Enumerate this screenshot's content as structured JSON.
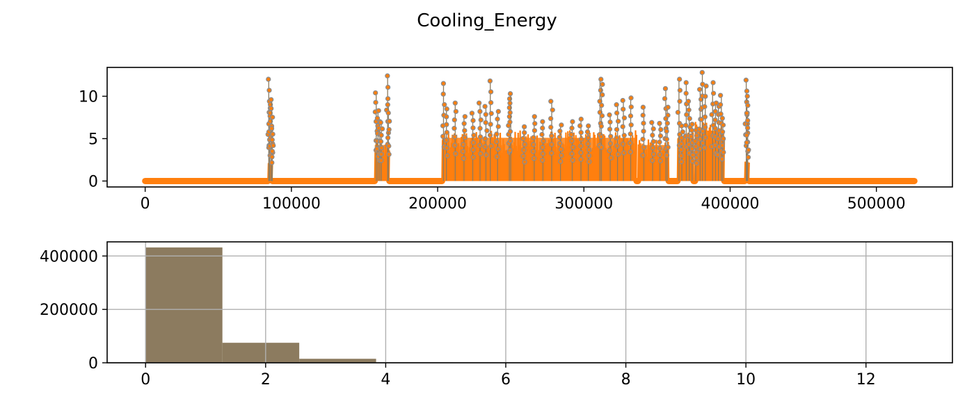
{
  "suptitle": "Cooling_Energy",
  "chart_data": [
    {
      "type": "line",
      "title": "",
      "xlabel": "",
      "ylabel": "",
      "xlim": [
        -26000,
        552000
      ],
      "ylim": [
        -0.7,
        13.4
      ],
      "x_ticks": [
        0,
        100000,
        200000,
        300000,
        400000,
        500000
      ],
      "x_tick_labels": [
        "0",
        "100000",
        "200000",
        "300000",
        "400000",
        "500000"
      ],
      "y_ticks": [
        0,
        5,
        10
      ],
      "y_tick_labels": [
        "0",
        "5",
        "10"
      ],
      "grid": false,
      "markers": "circle",
      "colors": {
        "line": "#8c7b5f",
        "marker_edge": "#8c8c8c",
        "marker_face": "#ff7f0e"
      },
      "x_range": [
        0,
        526000
      ],
      "baseline_value": 0,
      "active_periods": [
        {
          "start": 84000,
          "end": 87000,
          "typical_max": 2.5,
          "peaks": [
            [
              84500,
              12.0
            ],
            [
              85000,
              8.6
            ],
            [
              85800,
              9.0
            ],
            [
              86600,
              9.6
            ],
            [
              86900,
              6.2
            ]
          ]
        },
        {
          "start": 157000,
          "end": 167000,
          "typical_max": 5.0,
          "peaks": [
            [
              158000,
              10.4
            ],
            [
              159200,
              8.3
            ],
            [
              160400,
              7.0
            ],
            [
              161500,
              6.9
            ],
            [
              165800,
              12.4
            ],
            [
              166300,
              9.0
            ]
          ]
        },
        {
          "start": 203000,
          "end": 336000,
          "typical_max": 6.0,
          "peaks": [
            [
              204000,
              11.5
            ],
            [
              206000,
              8.5
            ],
            [
              212000,
              9.2
            ],
            [
              218000,
              7.6
            ],
            [
              224000,
              8.0
            ],
            [
              229000,
              9.2
            ],
            [
              233000,
              8.8
            ],
            [
              236000,
              11.8
            ],
            [
              241000,
              8.2
            ],
            [
              249000,
              9.7
            ],
            [
              250000,
              10.3
            ],
            [
              259000,
              6.4
            ],
            [
              266000,
              7.6
            ],
            [
              272000,
              7.0
            ],
            [
              278000,
              9.4
            ],
            [
              284000,
              6.6
            ],
            [
              292000,
              7.0
            ],
            [
              298000,
              7.3
            ],
            [
              303000,
              6.5
            ],
            [
              311000,
              12.0
            ],
            [
              312000,
              11.4
            ],
            [
              318000,
              7.8
            ],
            [
              323000,
              9.0
            ],
            [
              327000,
              9.5
            ],
            [
              332000,
              9.8
            ]
          ]
        },
        {
          "start": 337000,
          "end": 358000,
          "typical_max": 5.0,
          "peaks": [
            [
              341000,
              8.7
            ],
            [
              347000,
              6.9
            ],
            [
              352000,
              6.8
            ],
            [
              356000,
              10.9
            ],
            [
              357000,
              8.7
            ]
          ]
        },
        {
          "start": 364000,
          "end": 375000,
          "typical_max": 6.0,
          "peaks": [
            [
              365000,
              12.0
            ],
            [
              367000,
              6.5
            ],
            [
              370000,
              11.6
            ],
            [
              372000,
              9.4
            ],
            [
              374000,
              6.7
            ]
          ]
        },
        {
          "start": 376000,
          "end": 396000,
          "typical_max": 7.0,
          "peaks": [
            [
              376500,
              6.0
            ],
            [
              379500,
              10.8
            ],
            [
              381000,
              12.8
            ],
            [
              383000,
              11.2
            ],
            [
              388000,
              11.6
            ],
            [
              390000,
              9.2
            ],
            [
              392000,
              8.8
            ],
            [
              394000,
              10.1
            ],
            [
              395000,
              7.4
            ]
          ]
        },
        {
          "start": 410000,
          "end": 413000,
          "typical_max": 2.6,
          "peaks": [
            [
              411000,
              11.9
            ],
            [
              411500,
              10.0
            ],
            [
              412000,
              8.0
            ]
          ]
        }
      ]
    },
    {
      "type": "bar",
      "title": "",
      "xlabel": "",
      "ylabel": "",
      "xlim": [
        -0.64,
        13.44
      ],
      "ylim": [
        0,
        453000
      ],
      "x_ticks": [
        0,
        2,
        4,
        6,
        8,
        10,
        12
      ],
      "x_tick_labels": [
        "0",
        "2",
        "4",
        "6",
        "8",
        "10",
        "12"
      ],
      "y_ticks": [
        0,
        200000,
        400000
      ],
      "y_tick_labels": [
        "0",
        "200000",
        "400000"
      ],
      "grid": true,
      "colors": {
        "bar": "#8c7b5f",
        "grid": "#b0b0b0"
      },
      "bins": [
        {
          "start": 0.0,
          "end": 1.28,
          "count": 432000
        },
        {
          "start": 1.28,
          "end": 2.56,
          "count": 75000
        },
        {
          "start": 2.56,
          "end": 3.84,
          "count": 15000
        },
        {
          "start": 3.84,
          "end": 5.12,
          "count": 1500
        },
        {
          "start": 5.12,
          "end": 6.4,
          "count": 900
        },
        {
          "start": 6.4,
          "end": 7.68,
          "count": 300
        },
        {
          "start": 7.68,
          "end": 8.96,
          "count": 120
        },
        {
          "start": 8.96,
          "end": 10.24,
          "count": 60
        },
        {
          "start": 10.24,
          "end": 11.52,
          "count": 30
        },
        {
          "start": 11.52,
          "end": 12.8,
          "count": 15
        }
      ]
    }
  ]
}
